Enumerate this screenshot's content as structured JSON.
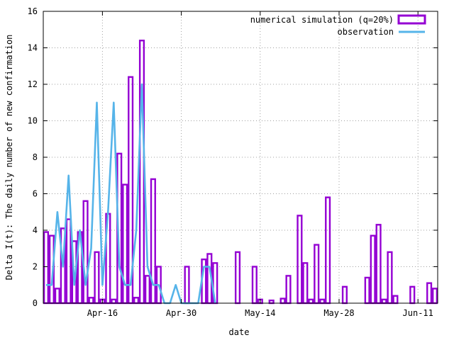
{
  "chart_data": {
    "type": "bar",
    "ylabel": "Delta I(t): The daily number of new confirmation",
    "xlabel": "date",
    "ylim": [
      0,
      16
    ],
    "yticks": [
      0,
      2,
      4,
      6,
      8,
      10,
      12,
      14,
      16
    ],
    "xlim": [
      "2020-04-06",
      "2020-06-14"
    ],
    "xticks": [
      {
        "date": "2020-04-16",
        "label": "Apr-16"
      },
      {
        "date": "2020-04-30",
        "label": "Apr-30"
      },
      {
        "date": "2020-05-14",
        "label": "May-14"
      },
      {
        "date": "2020-05-28",
        "label": "May-28"
      },
      {
        "date": "2020-06-11",
        "label": "Jun-11"
      }
    ],
    "grid": true,
    "legend_position": "top-right",
    "series": [
      {
        "name": "numerical simulation (q=20%)",
        "kind": "bar",
        "color": "#9400d3",
        "points": [
          [
            "2020-04-06",
            3.9
          ],
          [
            "2020-04-07",
            3.7
          ],
          [
            "2020-04-08",
            0.8
          ],
          [
            "2020-04-09",
            4.1
          ],
          [
            "2020-04-10",
            4.6
          ],
          [
            "2020-04-11",
            3.4
          ],
          [
            "2020-04-12",
            3.9
          ],
          [
            "2020-04-13",
            5.6
          ],
          [
            "2020-04-14",
            0.3
          ],
          [
            "2020-04-15",
            2.8
          ],
          [
            "2020-04-16",
            0.2
          ],
          [
            "2020-04-17",
            4.9
          ],
          [
            "2020-04-18",
            0.2
          ],
          [
            "2020-04-19",
            8.2
          ],
          [
            "2020-04-20",
            6.5
          ],
          [
            "2020-04-21",
            12.4
          ],
          [
            "2020-04-22",
            0.3
          ],
          [
            "2020-04-23",
            14.4
          ],
          [
            "2020-04-24",
            1.5
          ],
          [
            "2020-04-25",
            6.8
          ],
          [
            "2020-04-26",
            2.0
          ],
          [
            "2020-05-01",
            2.0
          ],
          [
            "2020-05-04",
            2.4
          ],
          [
            "2020-05-05",
            2.7
          ],
          [
            "2020-05-06",
            2.2
          ],
          [
            "2020-05-10",
            2.8
          ],
          [
            "2020-05-13",
            2.0
          ],
          [
            "2020-05-14",
            0.2
          ],
          [
            "2020-05-16",
            0.15
          ],
          [
            "2020-05-18",
            0.25
          ],
          [
            "2020-05-19",
            1.5
          ],
          [
            "2020-05-21",
            4.8
          ],
          [
            "2020-05-22",
            2.2
          ],
          [
            "2020-05-23",
            0.2
          ],
          [
            "2020-05-24",
            3.2
          ],
          [
            "2020-05-25",
            0.2
          ],
          [
            "2020-05-26",
            5.8
          ],
          [
            "2020-05-29",
            0.9
          ],
          [
            "2020-06-02",
            1.4
          ],
          [
            "2020-06-03",
            3.7
          ],
          [
            "2020-06-04",
            4.3
          ],
          [
            "2020-06-05",
            0.2
          ],
          [
            "2020-06-06",
            2.8
          ],
          [
            "2020-06-07",
            0.4
          ],
          [
            "2020-06-10",
            0.9
          ],
          [
            "2020-06-13",
            1.1
          ],
          [
            "2020-06-14",
            0.8
          ]
        ]
      },
      {
        "name": "observation",
        "kind": "line",
        "color": "#56b4e9",
        "points": [
          [
            "2020-04-06",
            1
          ],
          [
            "2020-04-07",
            1
          ],
          [
            "2020-04-08",
            5
          ],
          [
            "2020-04-09",
            2
          ],
          [
            "2020-04-10",
            7
          ],
          [
            "2020-04-11",
            1
          ],
          [
            "2020-04-12",
            4
          ],
          [
            "2020-04-13",
            1
          ],
          [
            "2020-04-14",
            3
          ],
          [
            "2020-04-15",
            11
          ],
          [
            "2020-04-16",
            1
          ],
          [
            "2020-04-17",
            5
          ],
          [
            "2020-04-18",
            11
          ],
          [
            "2020-04-19",
            2
          ],
          [
            "2020-04-20",
            1
          ],
          [
            "2020-04-21",
            1
          ],
          [
            "2020-04-22",
            4
          ],
          [
            "2020-04-23",
            12
          ],
          [
            "2020-04-24",
            2
          ],
          [
            "2020-04-25",
            1
          ],
          [
            "2020-04-26",
            1
          ],
          [
            "2020-04-27",
            0
          ],
          [
            "2020-04-28",
            0
          ],
          [
            "2020-04-29",
            1
          ],
          [
            "2020-04-30",
            0
          ],
          [
            "2020-05-01",
            0
          ],
          [
            "2020-05-02",
            0
          ],
          [
            "2020-05-03",
            0
          ],
          [
            "2020-05-04",
            2
          ],
          [
            "2020-05-05",
            2
          ],
          [
            "2020-05-06",
            0
          ]
        ]
      }
    ]
  }
}
